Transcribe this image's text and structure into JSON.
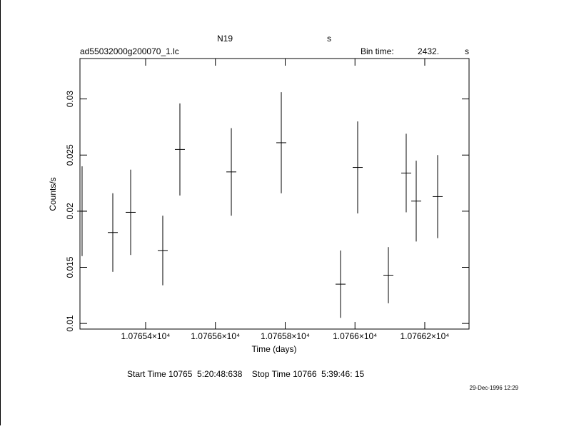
{
  "chart_data": {
    "type": "scatter",
    "title": "N19",
    "title_suffix": "s",
    "file_name": "ad55032000g200070_1.lc",
    "bin_time_label": "Bin time:",
    "bin_time": "2432.",
    "bin_time_unit": "s",
    "xlabel": "Time (days)",
    "ylabel": "Counts/s",
    "footer": "Start Time 10765  5:20:48:638    Stop Time 10766  5:39:46: 15",
    "timestamp": "29-Dec-1996 12:29",
    "xlim": [
      10765.2118,
      10766.3269
    ],
    "ylim": [
      0.0095,
      0.0336
    ],
    "xticks": [
      {
        "value": 10765.4,
        "label": "1.07654×10⁴"
      },
      {
        "value": 10765.6,
        "label": "1.07656×10⁴"
      },
      {
        "value": 10765.8,
        "label": "1.07658×10⁴"
      },
      {
        "value": 10766.0,
        "label": "1.0766×10⁴"
      },
      {
        "value": 10766.2,
        "label": "1.07662×10⁴"
      }
    ],
    "yticks": [
      0.01,
      0.015,
      0.02,
      0.025,
      0.03
    ],
    "series": [
      {
        "color": "#000000",
        "x": [
          10765.2179,
          10765.3059,
          10765.3571,
          10765.4491,
          10765.4982,
          10765.6456,
          10765.7888,
          10765.9586,
          10766.0077,
          10766.0957,
          10766.1468,
          10766.1755,
          10766.2369
        ],
        "values": [
          0.02,
          0.0181,
          0.0199,
          0.0165,
          0.0255,
          0.0235,
          0.0261,
          0.0135,
          0.0239,
          0.0143,
          0.0234,
          0.0209,
          0.0213
        ],
        "errors": [
          0.004,
          0.0035,
          0.0038,
          0.0031,
          0.0041,
          0.0039,
          0.0045,
          0.003,
          0.0041,
          0.0025,
          0.0035,
          0.0036,
          0.0037
        ]
      }
    ]
  }
}
